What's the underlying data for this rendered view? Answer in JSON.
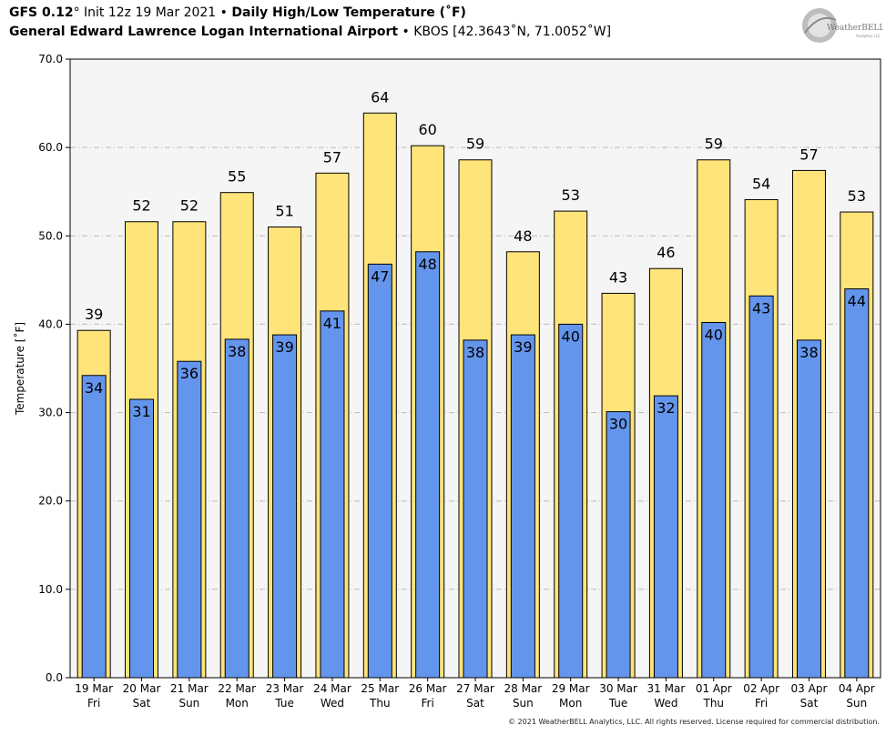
{
  "header": {
    "model": "GFS 0.12",
    "model_unit": "°",
    "init": "Init 12z 19 Mar 2021",
    "sep": "•",
    "product": "Daily High/Low Temperature (˚F)",
    "station_name": "General Edward Lawrence Logan International Airport",
    "station_info": "KBOS [42.3643˚N, 71.0052˚W]"
  },
  "logo": {
    "text": "WeatherBELL",
    "sub": "Analytics LLC"
  },
  "footer": {
    "copyright": "© 2021 WeatherBELL Analytics, LLC. All rights reserved. License required for commercial distribution."
  },
  "colors": {
    "high": "#FFE47A",
    "low": "#6495ED",
    "plot_bg": "#F5F5F5",
    "grid": "#BBBBBB"
  },
  "chart_data": {
    "type": "bar",
    "title": "Daily High/Low Temperature (˚F)",
    "ylabel": "Temperature [˚F]",
    "xlabel": "",
    "ylim": [
      0,
      70
    ],
    "yticks": [
      "0.0",
      "10.0",
      "20.0",
      "30.0",
      "40.0",
      "50.0",
      "60.0",
      "70.0"
    ],
    "categories": [
      {
        "date": "19 Mar",
        "day": "Fri"
      },
      {
        "date": "20 Mar",
        "day": "Sat"
      },
      {
        "date": "21 Mar",
        "day": "Sun"
      },
      {
        "date": "22 Mar",
        "day": "Mon"
      },
      {
        "date": "23 Mar",
        "day": "Tue"
      },
      {
        "date": "24 Mar",
        "day": "Wed"
      },
      {
        "date": "25 Mar",
        "day": "Thu"
      },
      {
        "date": "26 Mar",
        "day": "Fri"
      },
      {
        "date": "27 Mar",
        "day": "Sat"
      },
      {
        "date": "28 Mar",
        "day": "Sun"
      },
      {
        "date": "29 Mar",
        "day": "Mon"
      },
      {
        "date": "30 Mar",
        "day": "Tue"
      },
      {
        "date": "31 Mar",
        "day": "Wed"
      },
      {
        "date": "01 Apr",
        "day": "Thu"
      },
      {
        "date": "02 Apr",
        "day": "Fri"
      },
      {
        "date": "03 Apr",
        "day": "Sat"
      },
      {
        "date": "04 Apr",
        "day": "Sun"
      }
    ],
    "series": [
      {
        "name": "High",
        "values": [
          39.3,
          51.6,
          51.6,
          54.9,
          51.0,
          57.1,
          63.9,
          60.2,
          58.6,
          48.2,
          52.8,
          43.5,
          46.3,
          58.6,
          54.1,
          57.4,
          52.7
        ],
        "labels": [
          "39",
          "52",
          "52",
          "55",
          "51",
          "57",
          "64",
          "60",
          "59",
          "48",
          "53",
          "43",
          "46",
          "59",
          "54",
          "57",
          "53"
        ]
      },
      {
        "name": "Low",
        "values": [
          34.2,
          31.5,
          35.8,
          38.3,
          38.8,
          41.5,
          46.8,
          48.2,
          38.2,
          38.8,
          40.0,
          30.1,
          31.9,
          40.2,
          43.2,
          38.2,
          44.0
        ],
        "labels": [
          "34",
          "31",
          "36",
          "38",
          "39",
          "41",
          "47",
          "48",
          "38",
          "39",
          "40",
          "30",
          "32",
          "40",
          "43",
          "38",
          "44"
        ]
      }
    ]
  }
}
